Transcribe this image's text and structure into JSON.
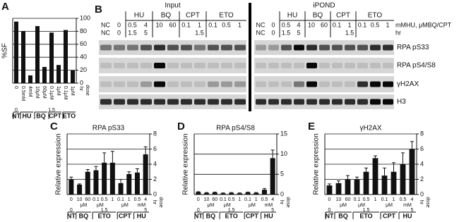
{
  "chart_data": [
    {
      "type": "bar",
      "panel": "A",
      "ylabel": "%SF",
      "categories": [
        "0",
        "0.5mM",
        "4mM",
        "10μM",
        "60μM",
        "0.1μM",
        "1μM",
        "0.1μM",
        "1μM"
      ],
      "groups": [
        "NT",
        "HU",
        "HU",
        "BQ",
        "BQ",
        "CPT",
        "CPT",
        "ETO",
        "ETO"
      ],
      "times": [
        "0",
        null,
        null,
        null,
        null,
        "1.5",
        null,
        null,
        null
      ],
      "dose_label": "dose",
      "time_label": "hr",
      "series": [
        {
          "color": "#111111",
          "values": [
            95,
            80,
            12,
            88,
            25,
            78,
            28,
            82,
            20
          ]
        }
      ],
      "ylim": [
        0,
        100
      ],
      "yticks": [
        0,
        20,
        40,
        60,
        80,
        100
      ],
      "grid": true
    },
    {
      "type": "bar",
      "panel": "C",
      "title": "RPA pS33",
      "ylabel": "Relative expression",
      "categories": [
        "0",
        "10",
        "60",
        "0.1",
        "0.5",
        "1",
        "0.1",
        "1",
        "0.5",
        "4"
      ],
      "units": [
        null,
        null,
        "μM",
        null,
        "μM",
        null,
        null,
        "μM",
        null,
        "mM"
      ],
      "times": [
        "0",
        null,
        null,
        null,
        "1.5",
        null,
        null,
        null,
        null,
        "5"
      ],
      "groups": [
        "NT",
        "BQ",
        "BQ",
        "ETO",
        "ETO",
        "ETO",
        "CPT",
        "CPT",
        "HU",
        "HU"
      ],
      "dose_label": "dose",
      "time_label": "hr",
      "series": [
        {
          "color": "#111111",
          "values": [
            2.0,
            1.3,
            3.0,
            3.2,
            4.2,
            4.2,
            1.5,
            2.7,
            2.9,
            5.3
          ],
          "errors": [
            0.3,
            0.1,
            0.3,
            0.5,
            1.3,
            1.5,
            0.5,
            0.3,
            0.5,
            1.0
          ]
        }
      ],
      "ylim": [
        0,
        8
      ],
      "yticks": [
        0,
        2,
        4,
        6,
        8
      ],
      "grid": true
    },
    {
      "type": "bar",
      "panel": "D",
      "title": "RPA pS4/S8",
      "ylabel": "Relative expression",
      "categories": [
        "0",
        "10",
        "60",
        "0.1",
        "0.5",
        "1",
        "0.1",
        "1",
        "0.5",
        "4"
      ],
      "units": [
        null,
        null,
        "μM",
        null,
        "μM",
        null,
        null,
        "μM",
        null,
        "mM"
      ],
      "times": [
        "0",
        null,
        null,
        null,
        "1.5",
        null,
        null,
        null,
        null,
        "5"
      ],
      "groups": [
        "NT",
        "BQ",
        "BQ",
        "ETO",
        "ETO",
        "ETO",
        "CPT",
        "CPT",
        "HU",
        "HU"
      ],
      "dose_label": "dose",
      "time_label": "hr",
      "series": [
        {
          "color": "#111111",
          "values": [
            0.6,
            0.4,
            0.5,
            0.3,
            0.4,
            0.3,
            0.5,
            0.4,
            1.2,
            9
          ],
          "errors": [
            0.1,
            0.1,
            0.1,
            0.1,
            0.1,
            0.1,
            0.1,
            0.1,
            0.3,
            2
          ]
        }
      ],
      "ylim": [
        0,
        15
      ],
      "yticks": [
        0,
        5,
        10,
        15
      ],
      "grid": true
    },
    {
      "type": "bar",
      "panel": "E",
      "title": "γH2AX",
      "ylabel": "Relative expression",
      "categories": [
        "0",
        "10",
        "60",
        "0.1",
        "0.5",
        "1",
        "0.1",
        "1",
        "0.5",
        "4"
      ],
      "units": [
        null,
        null,
        "μM",
        null,
        "μM",
        null,
        null,
        "μM",
        null,
        "mM"
      ],
      "times": [
        "0",
        null,
        null,
        null,
        "1.5",
        null,
        null,
        null,
        null,
        "5"
      ],
      "groups": [
        "NT",
        "BQ",
        "BQ",
        "ETO",
        "ETO",
        "ETO",
        "CPT",
        "CPT",
        "HU",
        "HU"
      ],
      "dose_label": "dose",
      "time_label": "hr",
      "series": [
        {
          "color": "#111111",
          "values": [
            1.2,
            1.5,
            2.0,
            2.0,
            3.0,
            4.8,
            2.5,
            3.0,
            4.0,
            6.0
          ],
          "errors": [
            0.2,
            0.3,
            0.5,
            0.3,
            0.5,
            0.3,
            1.0,
            1.2,
            1.5,
            1.0
          ]
        }
      ],
      "ylim": [
        0,
        8
      ],
      "yticks": [
        0,
        2,
        4,
        6,
        8
      ],
      "grid": true
    }
  ],
  "blot": {
    "panel": "B",
    "input": {
      "title": "Input",
      "groups": [
        "HU",
        "BQ",
        "CPT",
        "ETO"
      ],
      "dose": [
        "NC",
        "0",
        "0.5",
        "4",
        "10",
        "60",
        "0.1",
        "1",
        "0.1",
        "0.5",
        "1"
      ],
      "time": [
        "NC",
        "0",
        "1.5",
        "5",
        "1.5"
      ]
    },
    "ipond": {
      "title": "iPOND",
      "groups": [
        "HU",
        "BQ",
        "CPT",
        "ETO"
      ],
      "dose": [
        "NC",
        "0",
        "0.5",
        "4",
        "10",
        "60",
        "0.1",
        "1",
        "0.1",
        "0.5",
        "1"
      ],
      "time": [
        "NC",
        "0",
        "1.5",
        "5",
        "1.5"
      ]
    },
    "dose_label": "mMHU, μMBQ/CPT",
    "time_label": "hr",
    "rows": [
      "RPA pS33",
      "RPA pS4/S8",
      "γH2AX",
      "H3"
    ]
  }
}
